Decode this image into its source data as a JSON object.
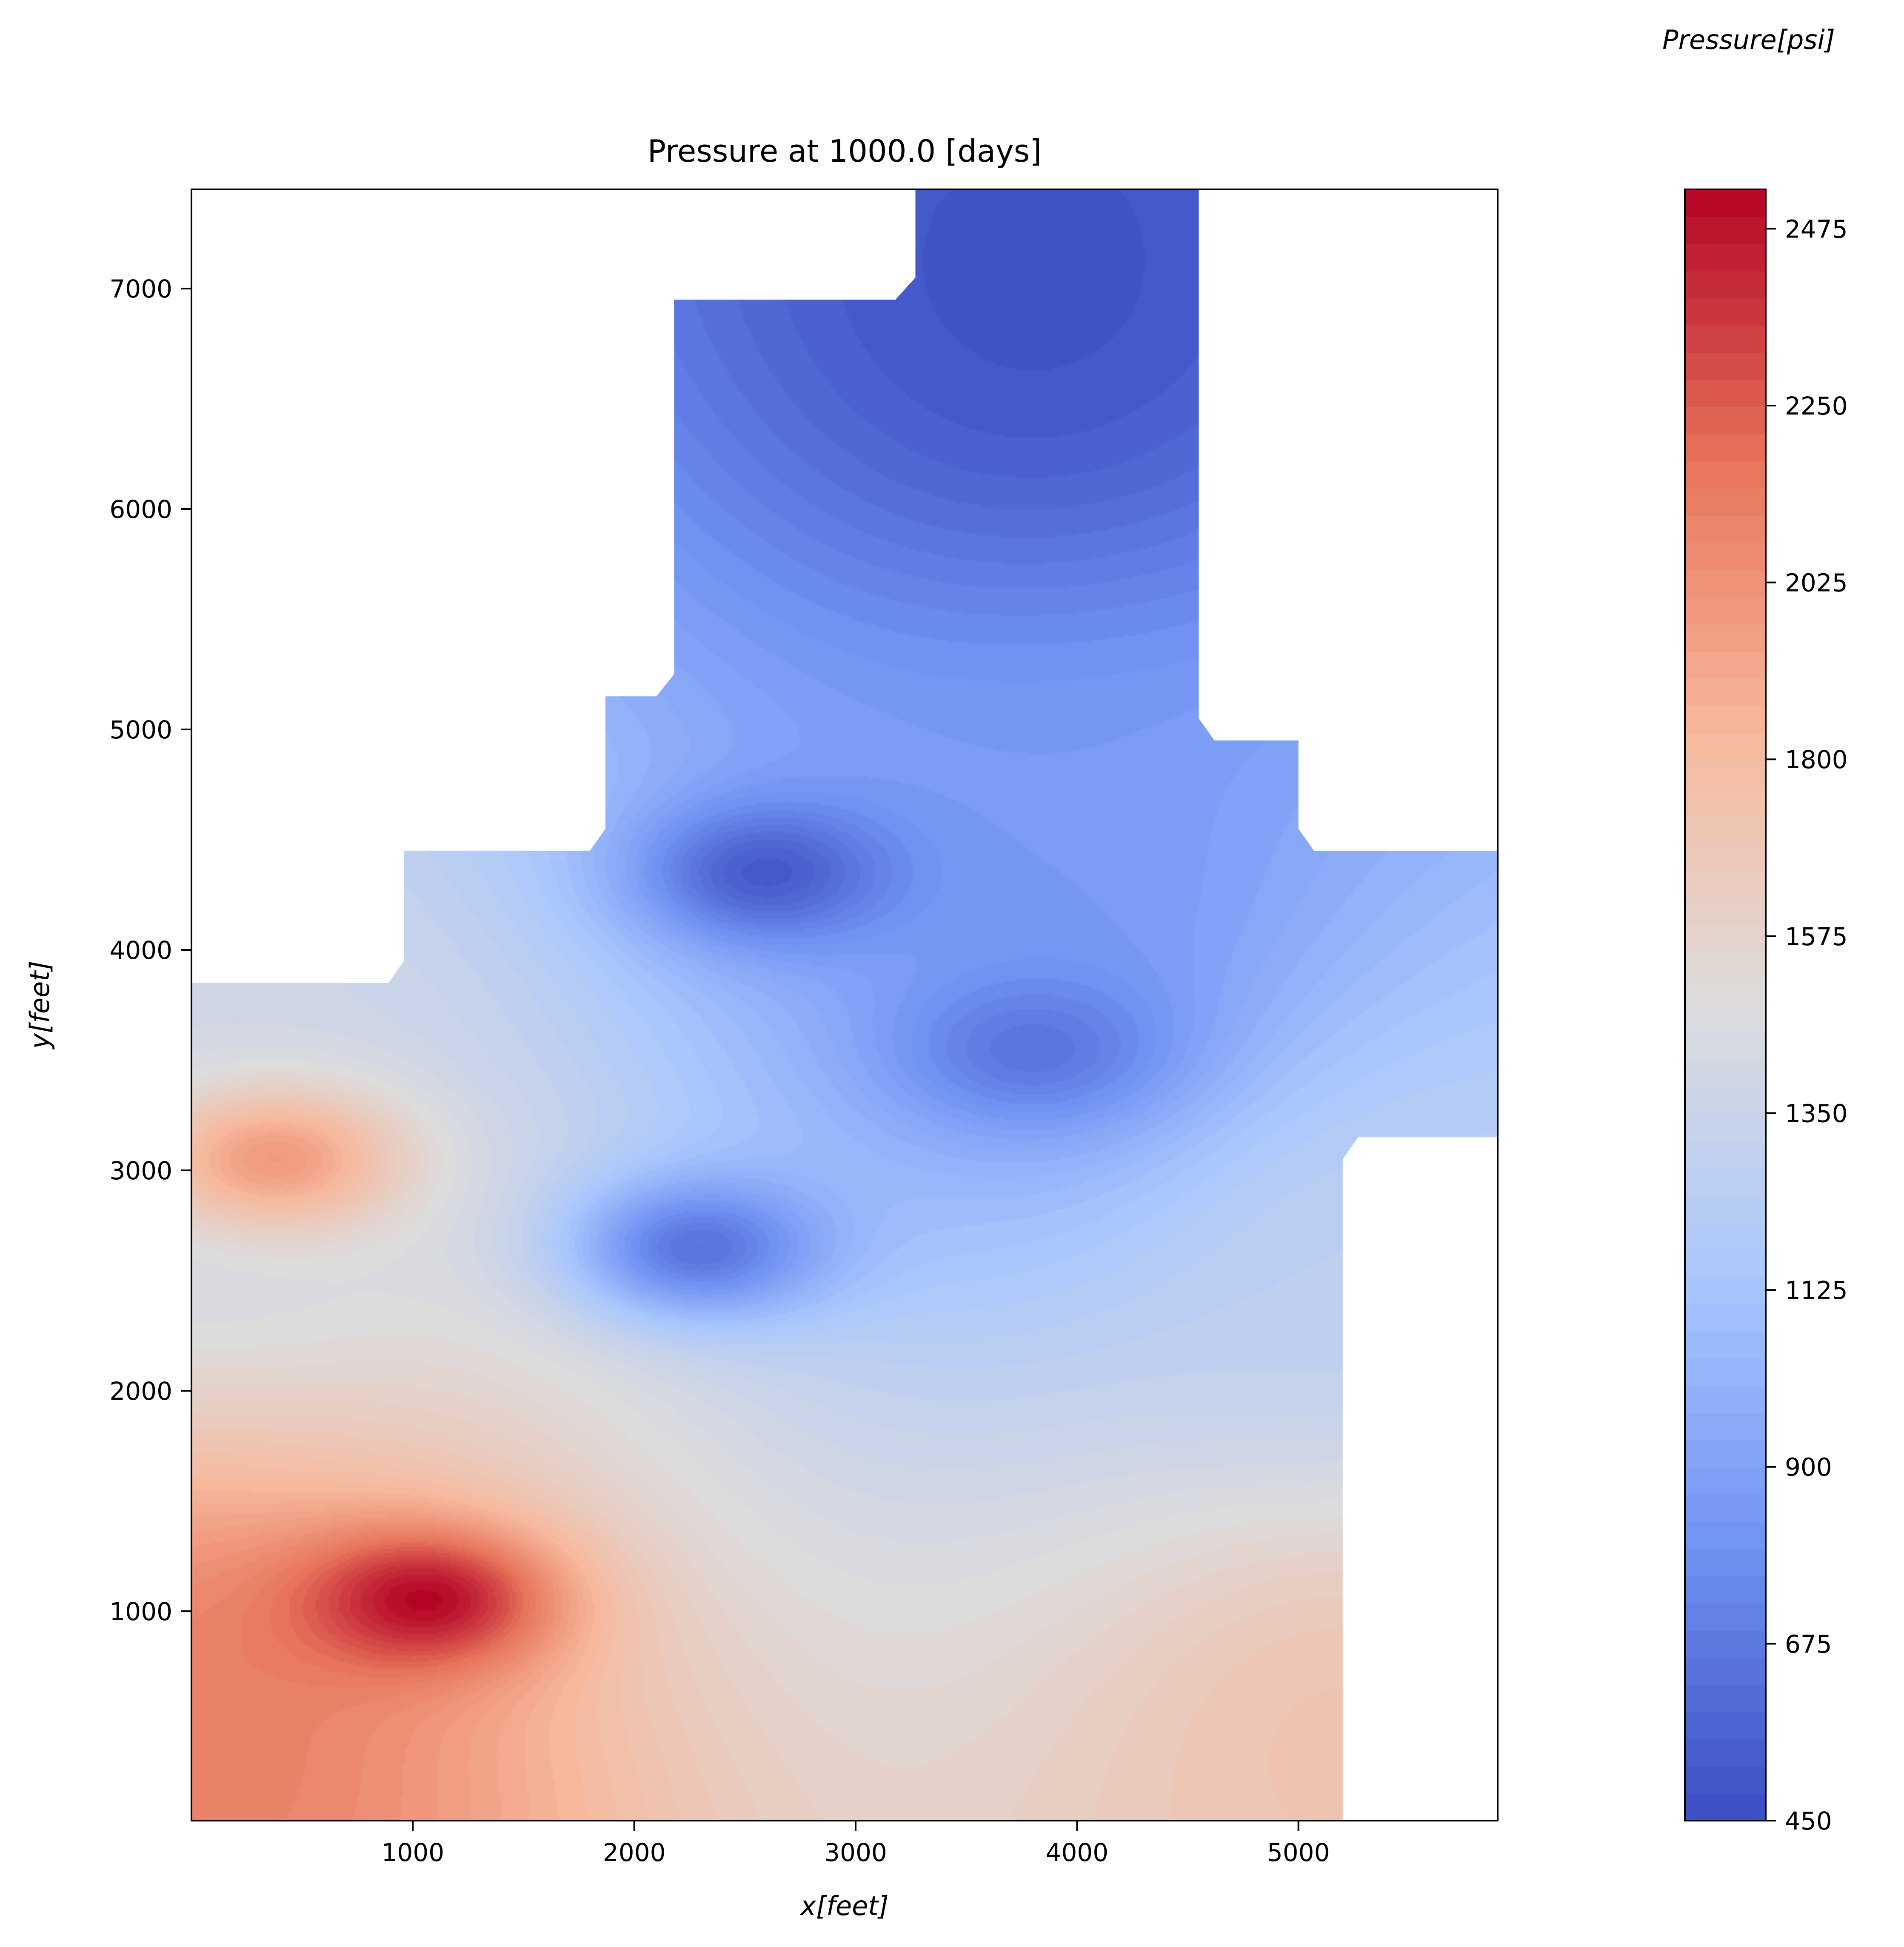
{
  "chart_data": {
    "type": "heatmap",
    "title": "Pressure at 1000.0 [days]",
    "xlabel": "x[feet]",
    "ylabel": "y[feet]",
    "xlim": [
      0,
      5900
    ],
    "ylim": [
      50,
      7450
    ],
    "x_ticks": [
      1000,
      2000,
      3000,
      4000,
      5000
    ],
    "y_ticks": [
      1000,
      2000,
      3000,
      4000,
      5000,
      6000,
      7000
    ],
    "x_tick_labels": [
      "1000",
      "2000",
      "3000",
      "4000",
      "5000"
    ],
    "y_tick_labels": [
      "1000",
      "2000",
      "3000",
      "4000",
      "5000",
      "6000",
      "7000"
    ],
    "grid": false,
    "colormap": "coolwarm",
    "colormap_stops": [
      "#3b4cc0",
      "#6f92f3",
      "#aac7fd",
      "#dddcdc",
      "#f7b89c",
      "#e7745b",
      "#b40426"
    ],
    "colorbar": {
      "title": "Pressure[psi]",
      "range": [
        450,
        2525
      ],
      "ticks": [
        450,
        675,
        900,
        1125,
        1350,
        1575,
        1800,
        2025,
        2250,
        2475
      ],
      "tick_labels": [
        "450",
        "675",
        "900",
        "1125",
        "1350",
        "1575",
        "1800",
        "2025",
        "2250",
        "2475"
      ]
    },
    "field": {
      "background_pressure_psi": 1850,
      "regional_trend": [
        {
          "x": 0,
          "y": 500,
          "p": 2150
        },
        {
          "x": 5200,
          "y": 500,
          "p": 1750
        },
        {
          "x": 0,
          "y": 3000,
          "p": 1380
        },
        {
          "x": 5200,
          "y": 2500,
          "p": 1270
        },
        {
          "x": 4000,
          "y": 4000,
          "p": 820
        },
        {
          "x": 3800,
          "y": 7000,
          "p": 470
        }
      ],
      "local_extrema": [
        {
          "x": 1050,
          "y": 1050,
          "p": 2520,
          "kind": "max"
        },
        {
          "x": 380,
          "y": 3050,
          "p": 1990,
          "kind": "max"
        },
        {
          "x": 2300,
          "y": 2650,
          "p": 640,
          "kind": "min"
        },
        {
          "x": 2600,
          "y": 4350,
          "p": 520,
          "kind": "min"
        },
        {
          "x": 3800,
          "y": 3550,
          "p": 650,
          "kind": "min"
        }
      ]
    },
    "domain_boundary": [
      [
        0,
        50
      ],
      [
        5200,
        50
      ],
      [
        5200,
        3050
      ],
      [
        5270,
        3150
      ],
      [
        5900,
        3150
      ],
      [
        5900,
        4450
      ],
      [
        5070,
        4450
      ],
      [
        5000,
        4550
      ],
      [
        5000,
        4950
      ],
      [
        4620,
        4950
      ],
      [
        4550,
        5050
      ],
      [
        4550,
        7450
      ],
      [
        3270,
        7450
      ],
      [
        3270,
        7050
      ],
      [
        3180,
        6950
      ],
      [
        2180,
        6950
      ],
      [
        2180,
        5250
      ],
      [
        2100,
        5150
      ],
      [
        1870,
        5150
      ],
      [
        1870,
        4550
      ],
      [
        1800,
        4450
      ],
      [
        960,
        4450
      ],
      [
        960,
        3950
      ],
      [
        890,
        3850
      ],
      [
        0,
        3850
      ]
    ]
  }
}
